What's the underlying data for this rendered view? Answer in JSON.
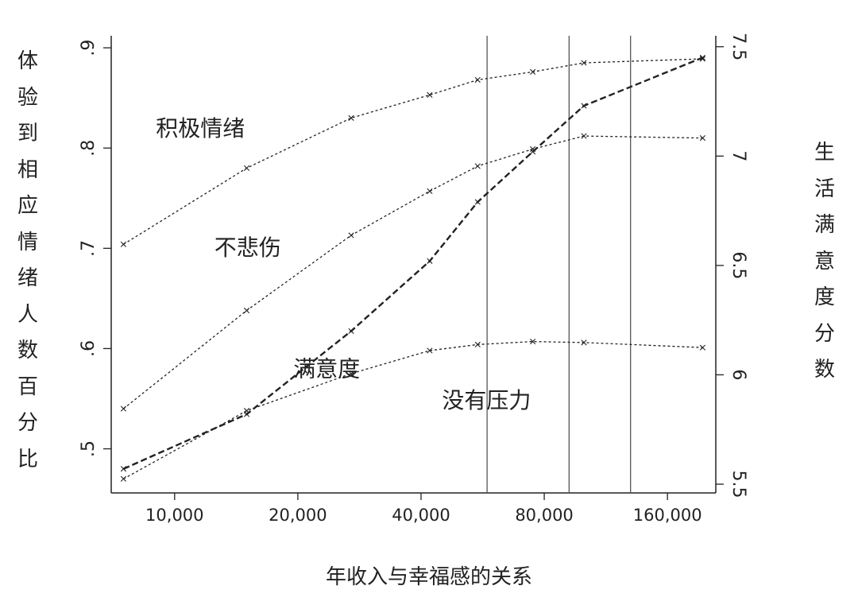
{
  "chart_data": {
    "type": "line",
    "title": "",
    "caption": "年收入与幸福感的关系",
    "xlabel": "",
    "ylabel_left": "体验到相应情绪人数百分比",
    "ylabel_right": "生活满意度分数",
    "x_scale": "log",
    "x": [
      7500,
      15000,
      27000,
      42000,
      55000,
      75000,
      100000,
      195000
    ],
    "x_ticks": [
      {
        "value": 10000,
        "label": "10,000"
      },
      {
        "value": 20000,
        "label": "20,000"
      },
      {
        "value": 40000,
        "label": "40,000"
      },
      {
        "value": 80000,
        "label": "80,000"
      },
      {
        "value": 160000,
        "label": "160,000"
      }
    ],
    "xlim": [
      7000,
      210000
    ],
    "ylim_left": [
      0.456,
      0.912
    ],
    "ylim_right": [
      5.46,
      7.55
    ],
    "y_left_ticks": [
      {
        "value": 0.5,
        "label": ".5"
      },
      {
        "value": 0.6,
        "label": ".6"
      },
      {
        "value": 0.7,
        "label": ".7"
      },
      {
        "value": 0.8,
        "label": ".8"
      },
      {
        "value": 0.9,
        "label": ".9"
      }
    ],
    "y_right_ticks": [
      {
        "value": 5.5,
        "label": "5.5"
      },
      {
        "value": 6.0,
        "label": "6"
      },
      {
        "value": 6.5,
        "label": "6.5"
      },
      {
        "value": 7.0,
        "label": "7"
      },
      {
        "value": 7.5,
        "label": "7.5"
      }
    ],
    "vlines": [
      58000,
      92000,
      130000
    ],
    "series": [
      {
        "name": "积极情绪",
        "axis": "left",
        "style": "dotted",
        "values": [
          0.704,
          0.78,
          0.83,
          0.853,
          0.868,
          0.876,
          0.885,
          0.889
        ]
      },
      {
        "name": "不悲伤",
        "axis": "left",
        "style": "dotted",
        "values": [
          0.54,
          0.638,
          0.713,
          0.757,
          0.782,
          0.799,
          0.812,
          0.81
        ]
      },
      {
        "name": "没有压力",
        "axis": "left",
        "style": "dotted",
        "values": [
          0.47,
          0.538,
          0.575,
          0.598,
          0.604,
          0.607,
          0.606,
          0.601
        ]
      },
      {
        "name": "满意度",
        "axis": "right",
        "style": "dashed",
        "values": [
          5.57,
          5.82,
          6.2,
          6.52,
          6.79,
          7.02,
          7.23,
          7.45
        ]
      }
    ]
  },
  "labels": [
    {
      "text": "积极情绪",
      "series": 0,
      "anchor": [
        9000,
        0.812
      ]
    },
    {
      "text": "不悲伤",
      "series": 1,
      "anchor": [
        12500,
        0.693
      ]
    },
    {
      "text": "满意度",
      "series": 3,
      "anchor": [
        19500,
        0.572
      ]
    },
    {
      "text": "没有压力",
      "series": 2,
      "anchor": [
        45000,
        0.541
      ]
    }
  ]
}
